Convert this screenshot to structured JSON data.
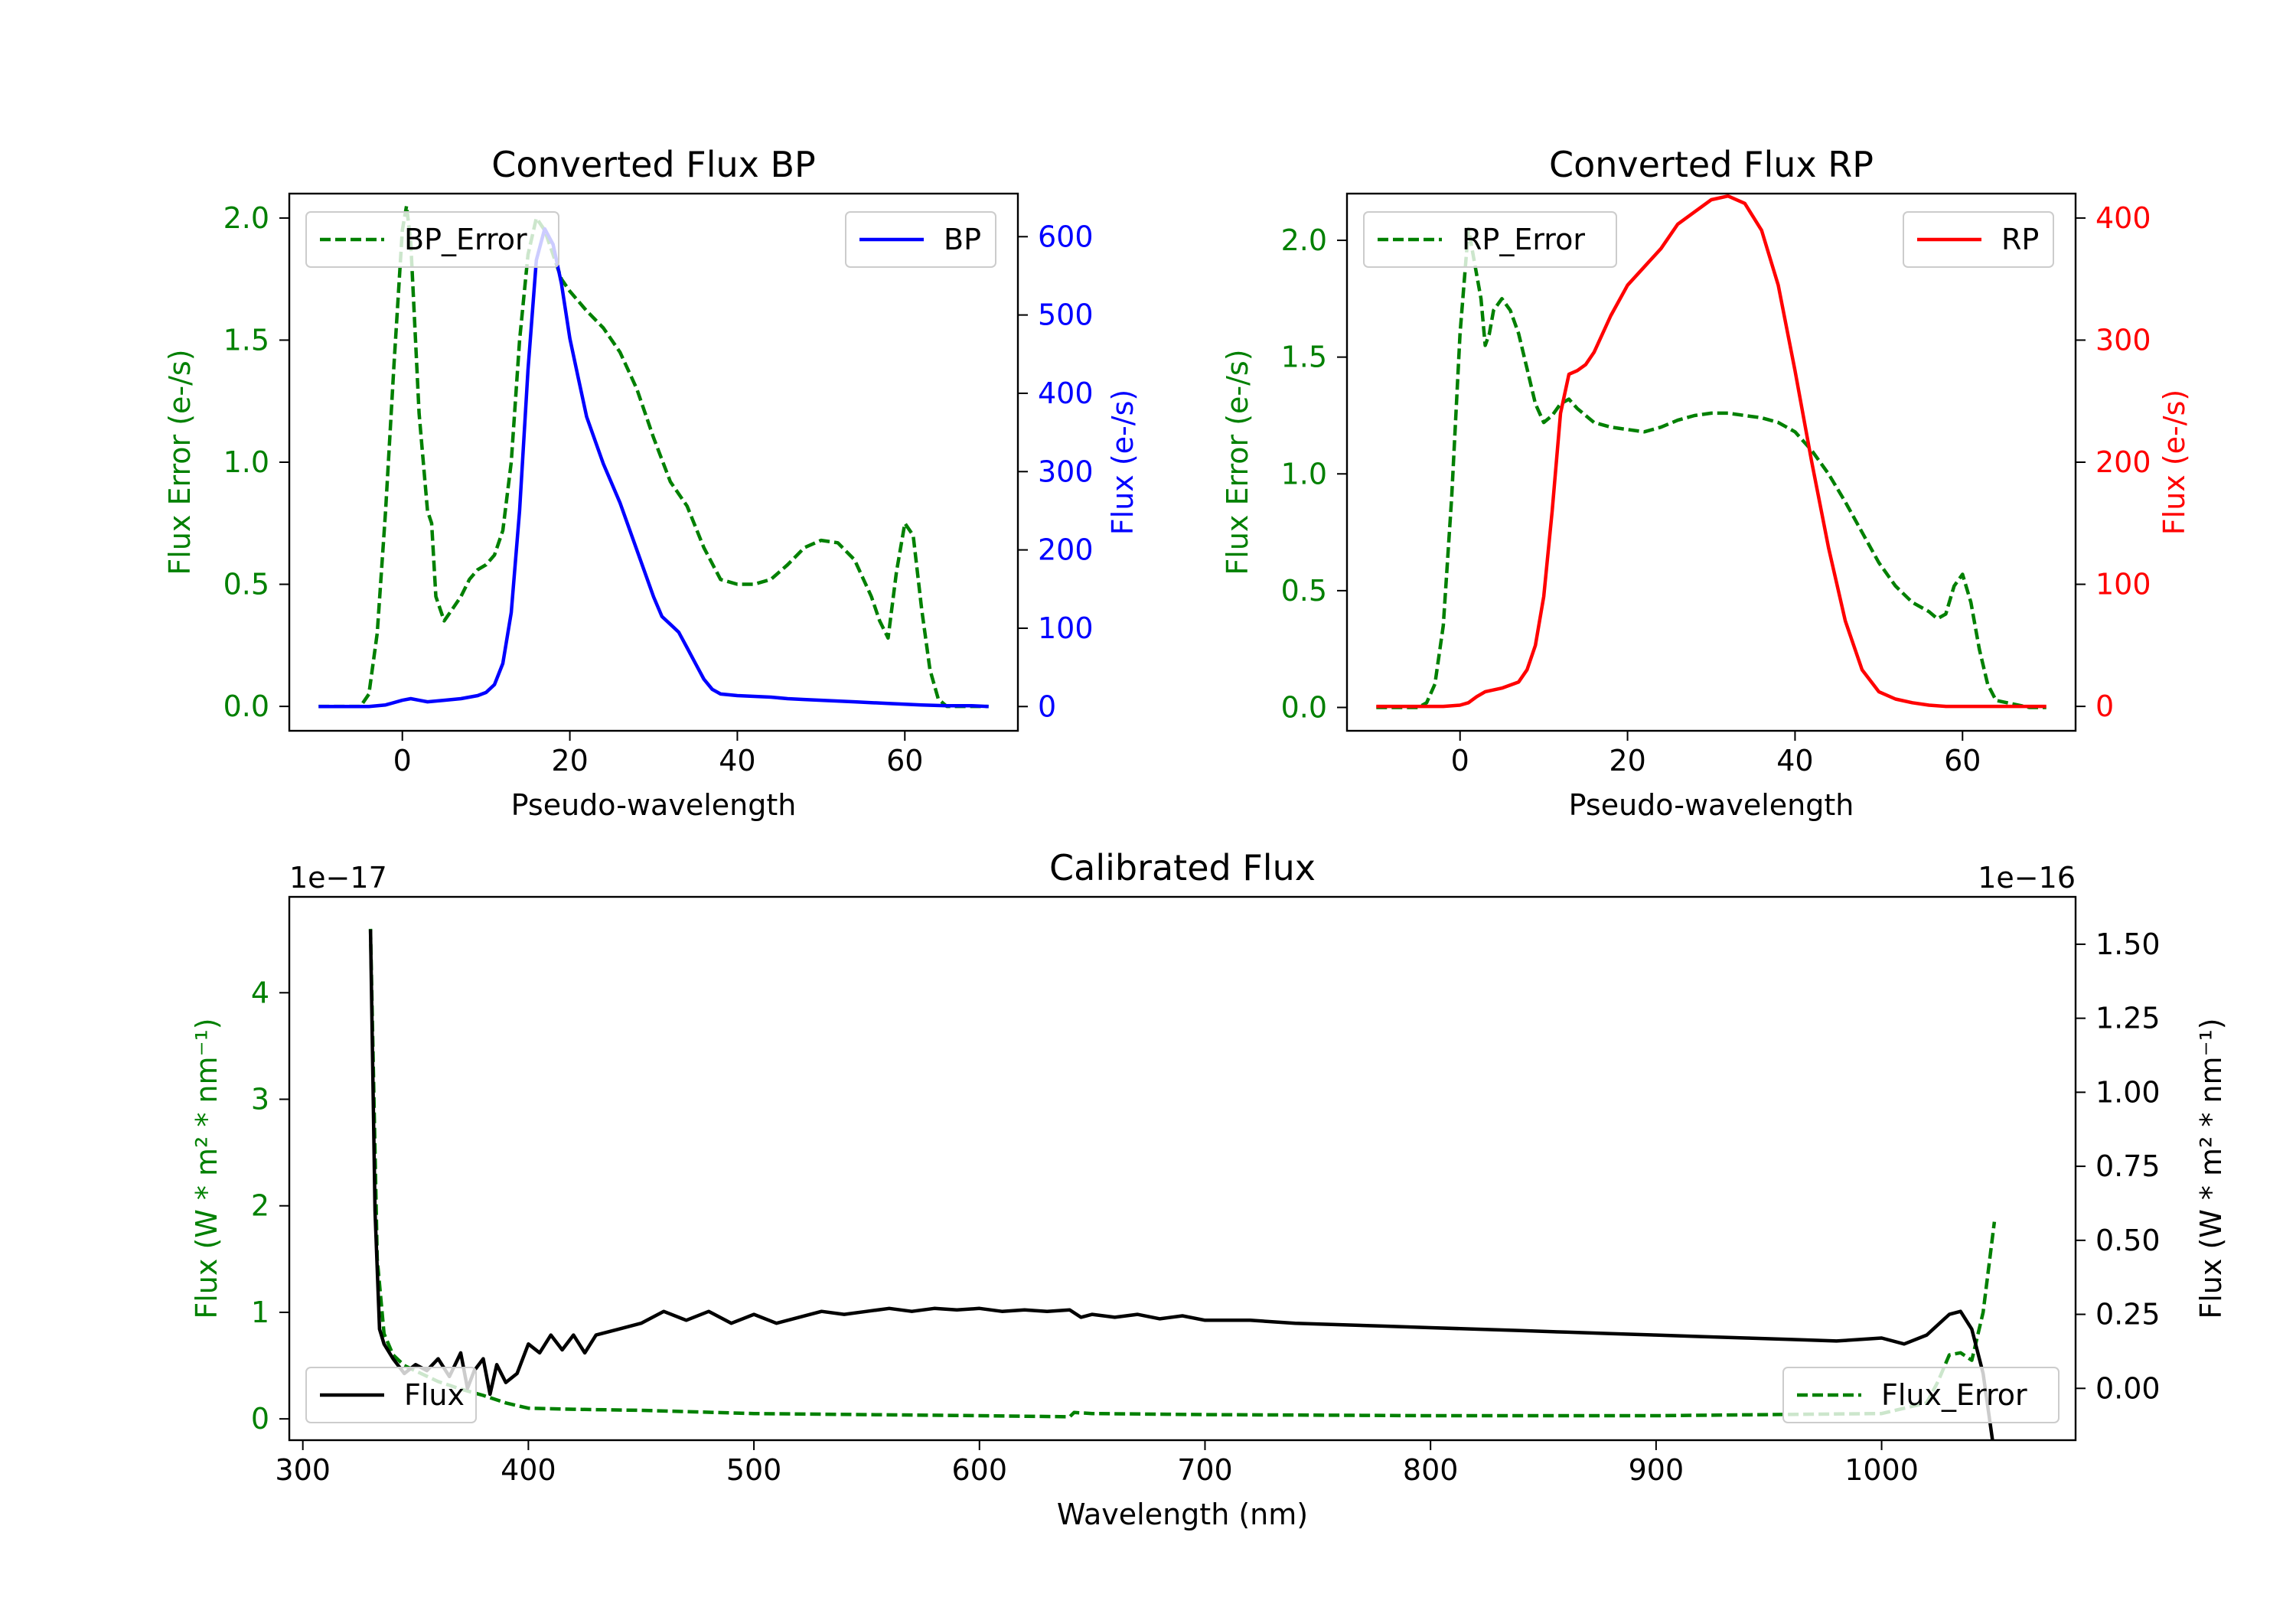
{
  "colors": {
    "error_green": "#008000",
    "bp_blue": "#0000ff",
    "rp_red": "#ff0000",
    "flux_black": "#000000",
    "axes": "#000000",
    "legend_border": "#cccccc"
  },
  "chart_data": [
    {
      "id": "bp",
      "type": "line",
      "title": "Converted Flux BP",
      "xlabel": "Pseudo-wavelength",
      "ylabel_left": "Flux Error (e-/s)",
      "ylabel_right": "Flux (e-/s)",
      "xlim": [
        -13.5,
        73.5
      ],
      "ylim_left": [
        -0.1,
        2.1
      ],
      "ylim_right": [
        -31,
        655
      ],
      "xticks": [
        0,
        20,
        40,
        60
      ],
      "xtick_labels": [
        "0",
        "20",
        "40",
        "60"
      ],
      "yticks_left": [
        0.0,
        0.5,
        1.0,
        1.5,
        2.0
      ],
      "ytick_labels_left": [
        "0.0",
        "0.5",
        "1.0",
        "1.5",
        "2.0"
      ],
      "yticks_right": [
        0,
        100,
        200,
        300,
        400,
        500,
        600
      ],
      "ytick_labels_right": [
        "0",
        "100",
        "200",
        "300",
        "400",
        "500",
        "600"
      ],
      "legend_left": "BP_Error",
      "legend_right": "BP",
      "series": [
        {
          "name": "BP_Error",
          "axis": "left",
          "style": "dashed",
          "color": "#008000",
          "x": [
            -10,
            -5,
            -4,
            -3,
            -2,
            -1,
            0,
            0.5,
            1,
            2,
            3,
            3.5,
            4,
            5,
            6,
            7,
            8,
            9,
            10,
            11,
            12,
            13,
            14,
            15,
            16,
            17,
            18,
            19,
            20,
            22,
            24,
            26,
            28,
            30,
            32,
            34,
            36,
            38,
            40,
            42,
            44,
            46,
            48,
            50,
            52,
            54,
            56,
            57,
            58,
            59,
            60,
            61,
            62,
            63,
            64,
            65,
            68,
            70
          ],
          "y": [
            0.0,
            0.0,
            0.05,
            0.3,
            0.8,
            1.4,
            1.95,
            2.05,
            1.9,
            1.2,
            0.8,
            0.75,
            0.45,
            0.35,
            0.4,
            0.45,
            0.52,
            0.56,
            0.58,
            0.62,
            0.72,
            1.0,
            1.5,
            1.85,
            2.0,
            1.95,
            1.85,
            1.75,
            1.7,
            1.62,
            1.55,
            1.45,
            1.3,
            1.1,
            0.92,
            0.82,
            0.65,
            0.52,
            0.5,
            0.5,
            0.52,
            0.58,
            0.65,
            0.68,
            0.67,
            0.6,
            0.45,
            0.35,
            0.28,
            0.55,
            0.75,
            0.7,
            0.4,
            0.15,
            0.03,
            0.0,
            0.0,
            0.0
          ]
        },
        {
          "name": "BP",
          "axis": "right",
          "style": "solid",
          "color": "#0000ff",
          "x": [
            -10,
            -6,
            -4,
            -2,
            0,
            1,
            2,
            3,
            5,
            7,
            9,
            10,
            11,
            12,
            13,
            14,
            15,
            16,
            17,
            18,
            19,
            20,
            21,
            22,
            24,
            26,
            28,
            30,
            31,
            32,
            33,
            34,
            35,
            36,
            37,
            38,
            40,
            42,
            44,
            46,
            48,
            50,
            52,
            54,
            56,
            58,
            60,
            62,
            65,
            68,
            70
          ],
          "y": [
            0,
            0,
            0,
            2,
            8,
            10,
            8,
            6,
            8,
            10,
            14,
            18,
            28,
            55,
            120,
            250,
            430,
            570,
            610,
            590,
            540,
            470,
            420,
            370,
            310,
            260,
            200,
            140,
            115,
            105,
            95,
            75,
            55,
            35,
            22,
            16,
            14,
            13,
            12,
            10,
            9,
            8,
            7,
            6,
            5,
            4,
            3,
            2,
            1,
            1,
            0
          ]
        }
      ]
    },
    {
      "id": "rp",
      "type": "line",
      "title": "Converted Flux RP",
      "xlabel": "Pseudo-wavelength",
      "ylabel_left": "Flux Error (e-/s)",
      "ylabel_right": "Flux (e-/s)",
      "xlim": [
        -13.5,
        73.5
      ],
      "ylim_left": [
        -0.1,
        2.2
      ],
      "ylim_right": [
        -20,
        420
      ],
      "xticks": [
        0,
        20,
        40,
        60
      ],
      "xtick_labels": [
        "0",
        "20",
        "40",
        "60"
      ],
      "yticks_left": [
        0.0,
        0.5,
        1.0,
        1.5,
        2.0
      ],
      "ytick_labels_left": [
        "0.0",
        "0.5",
        "1.0",
        "1.5",
        "2.0"
      ],
      "yticks_right": [
        0,
        100,
        200,
        300,
        400
      ],
      "ytick_labels_right": [
        "0",
        "100",
        "200",
        "300",
        "400"
      ],
      "legend_left": "RP_Error",
      "legend_right": "RP",
      "series": [
        {
          "name": "RP_Error",
          "axis": "left",
          "style": "dashed",
          "color": "#008000",
          "x": [
            -10,
            -5,
            -4,
            -3,
            -2,
            -1,
            0,
            1,
            2,
            2.5,
            3,
            3.5,
            4,
            5,
            6,
            7,
            8,
            9,
            10,
            11,
            12,
            13,
            14,
            16,
            18,
            20,
            22,
            24,
            26,
            28,
            30,
            32,
            34,
            36,
            38,
            40,
            42,
            44,
            46,
            48,
            50,
            52,
            54,
            56,
            57,
            58,
            59,
            60,
            61,
            62,
            63,
            64,
            68,
            70
          ],
          "y": [
            0.0,
            0.0,
            0.02,
            0.1,
            0.35,
            0.9,
            1.6,
            2.05,
            1.85,
            1.75,
            1.55,
            1.6,
            1.7,
            1.75,
            1.7,
            1.6,
            1.45,
            1.3,
            1.22,
            1.25,
            1.3,
            1.32,
            1.28,
            1.22,
            1.2,
            1.19,
            1.18,
            1.2,
            1.23,
            1.25,
            1.26,
            1.26,
            1.25,
            1.24,
            1.22,
            1.18,
            1.1,
            1.0,
            0.88,
            0.75,
            0.62,
            0.52,
            0.45,
            0.41,
            0.38,
            0.4,
            0.52,
            0.57,
            0.45,
            0.25,
            0.1,
            0.03,
            0.0,
            0.0
          ]
        },
        {
          "name": "RP",
          "axis": "right",
          "style": "solid",
          "color": "#ff0000",
          "x": [
            -10,
            -5,
            -2,
            0,
            1,
            2,
            3,
            5,
            7,
            8,
            9,
            10,
            11,
            12,
            13,
            14,
            15,
            16,
            18,
            20,
            22,
            24,
            26,
            28,
            30,
            32,
            34,
            36,
            38,
            40,
            42,
            44,
            46,
            48,
            50,
            52,
            54,
            56,
            58,
            60,
            62,
            65,
            68,
            70
          ],
          "y": [
            0,
            0,
            0,
            1,
            3,
            8,
            12,
            15,
            20,
            30,
            50,
            90,
            160,
            240,
            272,
            275,
            280,
            290,
            320,
            345,
            360,
            375,
            395,
            405,
            415,
            418,
            412,
            390,
            345,
            275,
            200,
            130,
            70,
            30,
            12,
            6,
            3,
            1,
            0,
            0,
            0,
            0,
            0,
            0
          ]
        }
      ]
    },
    {
      "id": "calibrated",
      "type": "line",
      "title": "Calibrated Flux",
      "xlabel": "Wavelength (nm)",
      "ylabel_left": "Flux (W * m² * nm⁻¹)",
      "ylabel_right": "Flux (W * m² * nm⁻¹)",
      "offset_left": "1e−17",
      "offset_right": "1e−16",
      "xlim": [
        294,
        1086
      ],
      "ylim_left": [
        -0.2,
        4.9
      ],
      "ylim_right": [
        -0.175,
        1.66
      ],
      "xticks": [
        300,
        400,
        500,
        600,
        700,
        800,
        900,
        1000
      ],
      "xtick_labels": [
        "300",
        "400",
        "500",
        "600",
        "700",
        "800",
        "900",
        "1000"
      ],
      "yticks_left": [
        0,
        1,
        2,
        3,
        4
      ],
      "ytick_labels_left": [
        "0",
        "1",
        "2",
        "3",
        "4"
      ],
      "yticks_right": [
        0.0,
        0.25,
        0.5,
        0.75,
        1.0,
        1.25,
        1.5
      ],
      "ytick_labels_right": [
        "0.00",
        "0.25",
        "0.50",
        "0.75",
        "1.00",
        "1.25",
        "1.50"
      ],
      "legend_left": "Flux",
      "legend_right": "Flux_Error",
      "series": [
        {
          "name": "Flux_Error",
          "axis": "left",
          "style": "dashed",
          "color": "#008000",
          "x": [
            330,
            333,
            336,
            340,
            345,
            350,
            360,
            370,
            380,
            390,
            400,
            420,
            450,
            500,
            550,
            600,
            640,
            642,
            650,
            700,
            800,
            900,
            950,
            1000,
            1020,
            1025,
            1030,
            1035,
            1040,
            1045,
            1050
          ],
          "y": [
            4.6,
            1.5,
            0.8,
            0.6,
            0.5,
            0.45,
            0.35,
            0.28,
            0.22,
            0.15,
            0.1,
            0.09,
            0.08,
            0.05,
            0.04,
            0.03,
            0.02,
            0.06,
            0.05,
            0.04,
            0.03,
            0.03,
            0.04,
            0.05,
            0.15,
            0.35,
            0.6,
            0.62,
            0.55,
            1.0,
            1.85
          ]
        },
        {
          "name": "Flux",
          "axis": "right",
          "style": "solid",
          "color": "#000000",
          "x": [
            330,
            332,
            334,
            336,
            340,
            345,
            350,
            355,
            360,
            365,
            370,
            373,
            376,
            380,
            383,
            386,
            390,
            395,
            400,
            405,
            410,
            415,
            420,
            425,
            430,
            440,
            450,
            460,
            470,
            480,
            490,
            500,
            510,
            520,
            530,
            540,
            550,
            560,
            570,
            580,
            590,
            600,
            610,
            620,
            630,
            640,
            645,
            650,
            660,
            670,
            680,
            690,
            700,
            720,
            740,
            760,
            780,
            800,
            820,
            840,
            860,
            880,
            900,
            920,
            940,
            960,
            980,
            1000,
            1010,
            1020,
            1030,
            1035,
            1040,
            1045,
            1050
          ],
          "y": [
            1.55,
            0.6,
            0.2,
            0.15,
            0.1,
            0.05,
            0.08,
            0.06,
            0.1,
            0.04,
            0.12,
            0.0,
            0.06,
            0.1,
            -0.02,
            0.08,
            0.02,
            0.05,
            0.15,
            0.12,
            0.18,
            0.13,
            0.18,
            0.12,
            0.18,
            0.2,
            0.22,
            0.26,
            0.23,
            0.26,
            0.22,
            0.25,
            0.22,
            0.24,
            0.26,
            0.25,
            0.26,
            0.27,
            0.26,
            0.27,
            0.265,
            0.27,
            0.26,
            0.265,
            0.26,
            0.265,
            0.24,
            0.25,
            0.24,
            0.25,
            0.235,
            0.245,
            0.23,
            0.23,
            0.22,
            0.215,
            0.21,
            0.205,
            0.2,
            0.195,
            0.19,
            0.185,
            0.18,
            0.175,
            0.17,
            0.165,
            0.16,
            0.17,
            0.15,
            0.18,
            0.25,
            0.26,
            0.2,
            0.05,
            -0.22
          ]
        }
      ]
    }
  ]
}
